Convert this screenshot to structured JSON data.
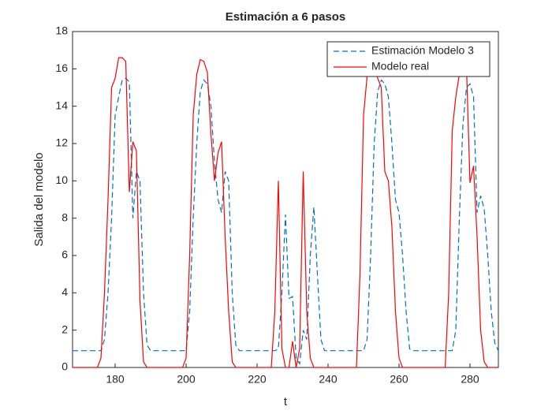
{
  "chart_data": {
    "type": "line",
    "title": "Estimación a 6 pasos",
    "x_label": "t",
    "y_label": "Salida del modelo",
    "x": [
      168,
      169,
      170,
      171,
      172,
      173,
      174,
      175,
      176,
      177,
      178,
      179,
      180,
      181,
      182,
      183,
      184,
      185,
      186,
      187,
      188,
      189,
      190,
      191,
      192,
      193,
      194,
      195,
      196,
      197,
      198,
      199,
      200,
      201,
      202,
      203,
      204,
      205,
      206,
      207,
      208,
      209,
      210,
      211,
      212,
      213,
      214,
      215,
      216,
      217,
      218,
      219,
      220,
      221,
      222,
      223,
      224,
      225,
      226,
      227,
      228,
      229,
      230,
      231,
      232,
      233,
      234,
      235,
      236,
      237,
      238,
      239,
      240,
      241,
      242,
      243,
      244,
      245,
      246,
      247,
      248,
      249,
      250,
      251,
      252,
      253,
      254,
      255,
      256,
      257,
      258,
      259,
      260,
      261,
      262,
      263,
      264,
      265,
      266,
      267,
      268,
      269,
      270,
      271,
      272,
      273,
      274,
      275,
      276,
      277,
      278,
      279,
      280,
      281,
      282,
      283,
      284,
      285,
      286,
      287,
      288
    ],
    "series": [
      {
        "name": "Estimación Modelo 3",
        "color": "#0072bd",
        "dash": true,
        "values": [
          0.9,
          0.9,
          0.9,
          0.9,
          0.9,
          0.9,
          0.9,
          0.9,
          0.9,
          1.5,
          4,
          8,
          13.5,
          14.5,
          15.4,
          15.5,
          15.3,
          8,
          10.5,
          10,
          4,
          1.2,
          0.9,
          0.9,
          0.9,
          0.9,
          0.9,
          0.9,
          0.9,
          0.9,
          0.9,
          0.9,
          0.9,
          3,
          8,
          12,
          14.8,
          15.4,
          15.2,
          14,
          11,
          9,
          8.3,
          10.5,
          10,
          4,
          1.2,
          0.9,
          0.9,
          0.9,
          0.9,
          0.9,
          0.9,
          0.9,
          0.9,
          0.9,
          0.9,
          0.9,
          1,
          4,
          8.2,
          3.7,
          3.8,
          0.5,
          0.2,
          2,
          1.5,
          6,
          8.6,
          5,
          1.5,
          0.9,
          0.9,
          0.9,
          0.9,
          0.9,
          0.9,
          0.9,
          0.9,
          0.9,
          0.9,
          0.9,
          0.9,
          1.5,
          6,
          12,
          14.8,
          15.4,
          15.2,
          14.5,
          12,
          9,
          8.3,
          6,
          3,
          1,
          0.9,
          0.9,
          0.9,
          0.9,
          0.9,
          0.9,
          0.9,
          0.9,
          0.9,
          0.9,
          0.9,
          0.9,
          2,
          8,
          13,
          15,
          15.2,
          14.5,
          8.3,
          9.2,
          8.5,
          6,
          3,
          1.3,
          0.9
        ]
      },
      {
        "name": "Modelo real",
        "color": "#ff0000",
        "dash": false,
        "values": [
          0,
          0,
          0,
          0,
          0,
          0,
          0,
          0,
          0.5,
          4,
          9,
          15,
          15.5,
          16.6,
          16.6,
          16.4,
          9.4,
          12.1,
          11.6,
          3.6,
          0.3,
          0,
          0,
          0,
          0,
          0,
          0,
          0,
          0,
          0,
          0,
          0,
          0.5,
          6,
          13.5,
          15.7,
          16.5,
          16.4,
          15.8,
          12.5,
          10,
          11.5,
          12.1,
          7,
          3,
          0.3,
          0,
          0,
          0,
          0,
          0,
          0,
          0,
          0,
          0,
          0,
          0,
          3,
          10,
          1,
          0,
          0,
          1.4,
          0,
          1,
          10.5,
          3,
          0.5,
          0,
          0,
          0,
          0,
          0,
          0,
          0,
          0,
          0,
          0,
          0,
          0,
          0,
          5,
          13.5,
          15.6,
          16.5,
          16.3,
          15.5,
          15,
          10.5,
          10,
          7.5,
          3,
          0.5,
          0,
          0,
          0,
          0,
          0,
          0,
          0,
          0,
          0,
          0,
          0,
          0,
          0,
          4,
          12.7,
          14.5,
          15.7,
          16.3,
          16.2,
          9.9,
          10.8,
          7,
          2,
          0.3,
          0,
          0,
          0,
          0
        ]
      }
    ],
    "xlim": [
      168,
      288
    ],
    "ylim": [
      0,
      18
    ],
    "xticks": [
      180,
      200,
      220,
      240,
      260,
      280
    ],
    "yticks": [
      0,
      2,
      4,
      6,
      8,
      10,
      12,
      14,
      16,
      18
    ],
    "legend": "top-right"
  }
}
